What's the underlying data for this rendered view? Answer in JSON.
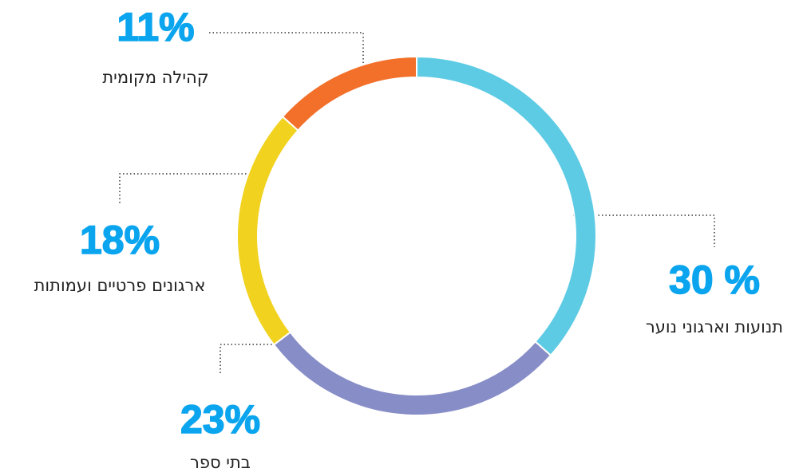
{
  "chart_data": {
    "type": "donut",
    "categories": [
      "תנועות וארגוני נוער",
      "בתי ספר",
      "ארגונים פרטיים ועמותות",
      "קהילה מקומית"
    ],
    "values": [
      30,
      23,
      18,
      11
    ],
    "value_labels": [
      "30 %",
      "23%",
      "18%",
      "11%"
    ],
    "colors": [
      "#5ecbe5",
      "#878dc6",
      "#f1d21f",
      "#f2702a"
    ]
  }
}
